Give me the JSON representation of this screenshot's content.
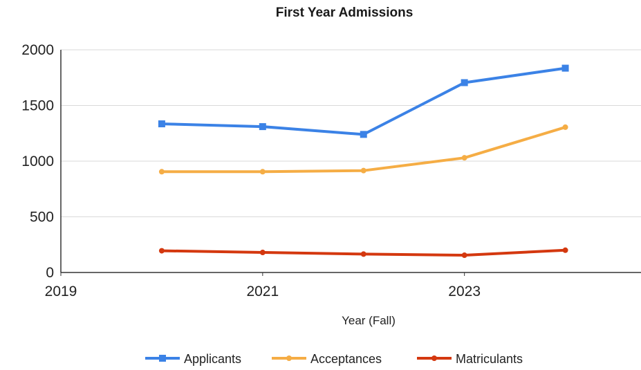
{
  "chart_data": {
    "type": "line",
    "title": "First Year Admissions",
    "xlabel": "Year (Fall)",
    "ylabel": "",
    "x": [
      2020,
      2021,
      2022,
      2023,
      2024
    ],
    "xlim": [
      2019,
      2024.75
    ],
    "ylim": [
      0,
      2000
    ],
    "x_ticks": [
      "2019",
      "2021",
      "2023"
    ],
    "y_ticks": [
      "0",
      "500",
      "1000",
      "1500",
      "2000"
    ],
    "grid": true,
    "legend_position": "bottom",
    "series": [
      {
        "name": "Applicants",
        "color": "#3b82e6",
        "marker": "square",
        "values": [
          1335,
          1310,
          1240,
          1705,
          1835
        ]
      },
      {
        "name": "Acceptances",
        "color": "#f5ad45",
        "marker": "circle",
        "values": [
          905,
          905,
          915,
          1030,
          1305
        ]
      },
      {
        "name": "Matriculants",
        "color": "#d4380f",
        "marker": "circle",
        "values": [
          195,
          180,
          165,
          155,
          200
        ]
      }
    ]
  }
}
